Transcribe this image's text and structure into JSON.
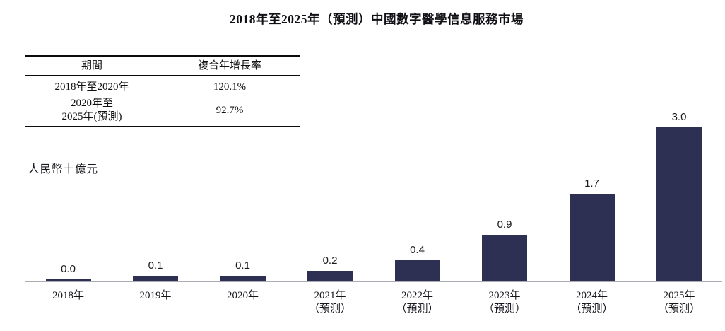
{
  "title": "2018年至2025年（預測）中國數字醫學信息服務市場",
  "cagr_table": {
    "headers": {
      "period": "期間",
      "cagr": "複合年增長率"
    },
    "rows": [
      {
        "period": "2018年至2020年",
        "cagr": "120.1%"
      },
      {
        "period": "2020年至\n2025年(預測)",
        "cagr": "92.7%"
      }
    ]
  },
  "unit_label": "人民幣十億元",
  "chart_data": {
    "type": "bar",
    "title": "2018年至2025年（預測）中國數字醫學信息服務市場",
    "ylabel": "人民幣十億元",
    "categories": [
      "2018年",
      "2019年",
      "2020年",
      "2021年（預測）",
      "2022年（預測）",
      "2023年（預測）",
      "2024年（預測）",
      "2025年（預測）"
    ],
    "tick_lines": [
      [
        "2018年"
      ],
      [
        "2019年"
      ],
      [
        "2020年"
      ],
      [
        "2021年",
        "（預測）"
      ],
      [
        "2022年",
        "（預測）"
      ],
      [
        "2023年",
        "（預測）"
      ],
      [
        "2024年",
        "（預測）"
      ],
      [
        "2025年",
        "（預測）"
      ]
    ],
    "values": [
      0.0,
      0.1,
      0.1,
      0.2,
      0.4,
      0.9,
      1.7,
      3.0
    ],
    "data_labels": [
      "0.0",
      "0.1",
      "0.1",
      "0.2",
      "0.4",
      "0.9",
      "1.7",
      "3.0"
    ],
    "bar_color": "#2d3052",
    "axis_line_color": "#abacb6",
    "label_color": "#1a1a1a",
    "ylim": [
      0,
      3.2
    ],
    "grid": false,
    "legend": false
  }
}
